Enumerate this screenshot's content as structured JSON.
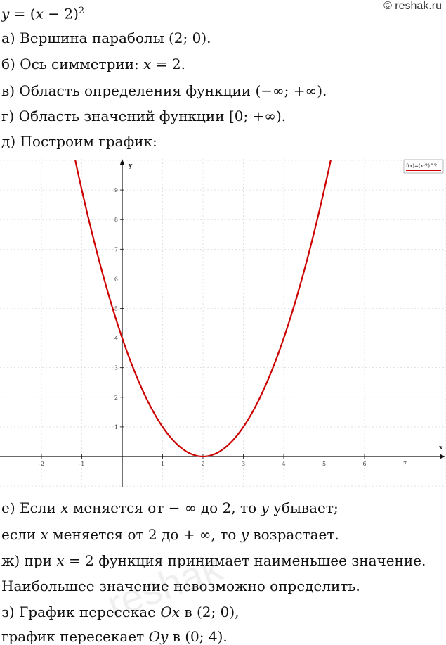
{
  "watermark": "© reshak.ru",
  "bg_watermark": "reshak",
  "formula": {
    "lhs": "y",
    "eq": " = (",
    "x": "x",
    "rest": " − 2)",
    "sup": "2"
  },
  "items": {
    "a": "а) Вершина параболы (2; 0).",
    "b_pre": "б) Ось симметрии: ",
    "b_var": "x",
    "b_post": " = 2.",
    "v": "в) Область определения функции (−∞; +∞).",
    "g": "г) Область значений функции [0; +∞).",
    "d": "д) Построим график:",
    "e1_pre": "е) Если ",
    "e1_var1": "x",
    "e1_mid": " меняется от − ∞ до 2, то ",
    "e1_var2": "y",
    "e1_post": " убывает;",
    "e2_pre": "если ",
    "e2_var1": "x",
    "e2_mid": " меняется от 2 до + ∞, то ",
    "e2_var2": "y",
    "e2_post": " возрастает.",
    "zh_pre": "ж) при ",
    "zh_var": "x",
    "zh_post": " = 2 функция принимает наименьшее значение.",
    "max": "Наибольшее значение невозможно определить.",
    "z1_pre": "з) График пересекае ",
    "z1_var": "Ox",
    "z1_post": " в (2; 0),",
    "z2_pre": "график пересекает ",
    "z2_var": "Oy",
    "z2_post": " в (0; 4)."
  },
  "chart_data": {
    "type": "line",
    "series": [
      {
        "name": "f(x)=(x-2)^2",
        "color": "#cc0000",
        "function": "(x-2)^2"
      }
    ],
    "xlabel": "x",
    "ylabel": "y",
    "xlim": [
      -3,
      8
    ],
    "ylim": [
      -1,
      10
    ],
    "x_ticks": [
      -2,
      -1,
      1,
      2,
      3,
      4,
      5,
      6,
      7
    ],
    "y_ticks": [
      1,
      2,
      3,
      4,
      5,
      6,
      7,
      8,
      9
    ],
    "x_tick_labels": [
      "-2",
      "-1",
      "1",
      "2",
      "3",
      "4",
      "5",
      "6",
      "7"
    ],
    "y_tick_labels": [
      "1",
      "2",
      "3",
      "4",
      "5",
      "6",
      "7",
      "8",
      "9"
    ],
    "grid": true,
    "legend": "top-right"
  }
}
